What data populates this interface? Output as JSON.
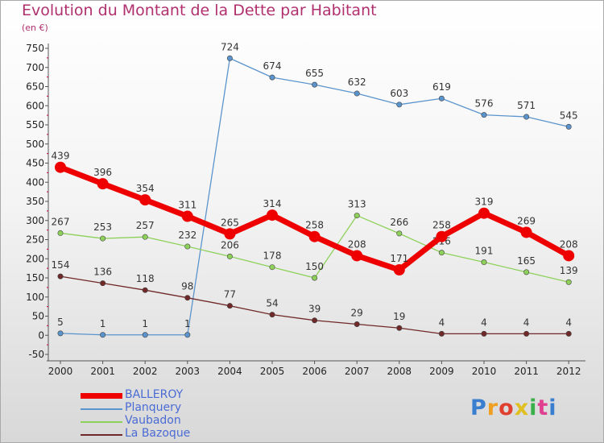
{
  "header": {
    "title": "Evolution du Montant de la Dette par Habitant",
    "subtitle": "(en €)"
  },
  "logo": {
    "text": "Proxiti",
    "colors": [
      "#3a7ed0",
      "#f0a020",
      "#e04030",
      "#e0c020",
      "#3ab04a",
      "#e04090",
      "#3a7ed0"
    ]
  },
  "chart_data": {
    "type": "line",
    "title": "Evolution du Montant de la Dette par Habitant",
    "subtitle": "(en €)",
    "x": [
      "2000",
      "2001",
      "2002",
      "2003",
      "2004",
      "2005",
      "2006",
      "2007",
      "2008",
      "2009",
      "2010",
      "2011",
      "2012"
    ],
    "ylim": [
      -50,
      750
    ],
    "yticks": [
      -50,
      0,
      50,
      100,
      150,
      200,
      250,
      300,
      350,
      400,
      450,
      500,
      550,
      600,
      650,
      700,
      750
    ],
    "grid": false,
    "legend_position": "bottom-left",
    "series": [
      {
        "name": "BALLEROY",
        "color": "#ee0000",
        "values": [
          439,
          396,
          354,
          311,
          265,
          314,
          258,
          208,
          171,
          258,
          319,
          269,
          208
        ]
      },
      {
        "name": "Planquery",
        "color": "#5b94cc",
        "values": [
          5,
          1,
          1,
          1,
          724,
          674,
          655,
          632,
          603,
          619,
          576,
          571,
          545
        ]
      },
      {
        "name": "Vaubadon",
        "color": "#8ed15a",
        "values": [
          267,
          253,
          257,
          232,
          206,
          178,
          150,
          313,
          266,
          216,
          191,
          165,
          139
        ]
      },
      {
        "name": "La Bazoque",
        "color": "#702828",
        "values": [
          154,
          136,
          118,
          98,
          77,
          54,
          39,
          29,
          19,
          4,
          4,
          4,
          4
        ]
      }
    ]
  }
}
